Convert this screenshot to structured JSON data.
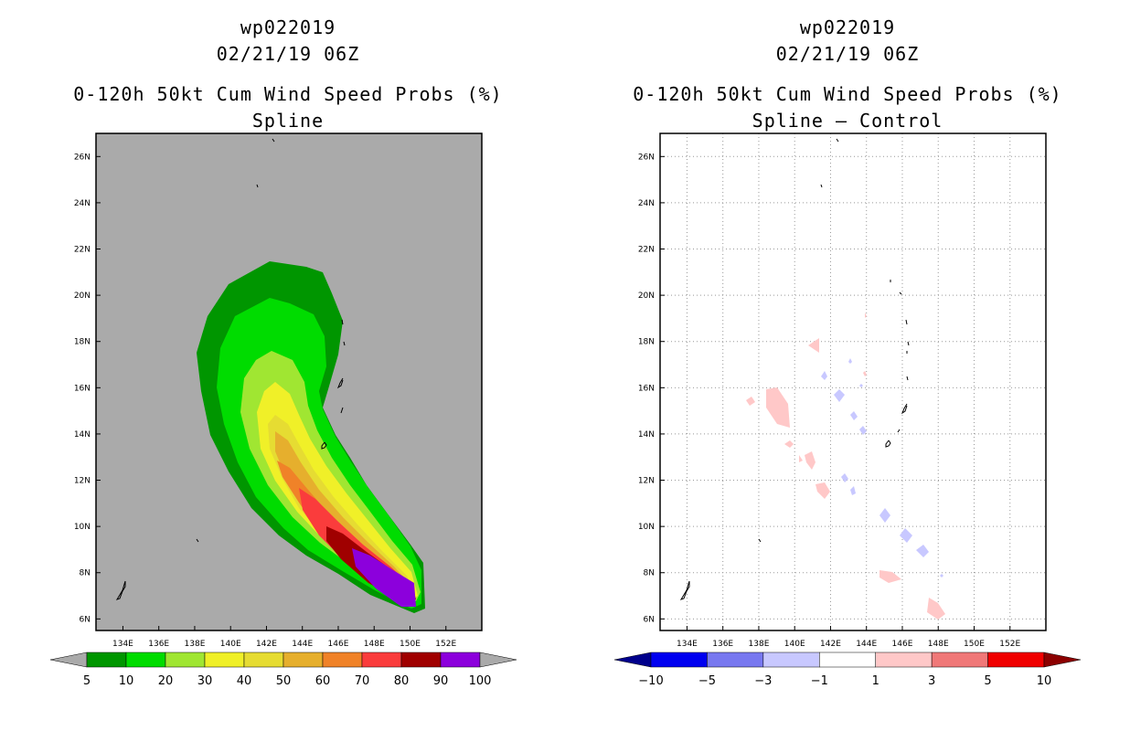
{
  "left": {
    "title_line1": "wp022019",
    "title_line2": "02/21/19 06Z",
    "title_line3": "0-120h 50kt Cum Wind Speed Probs (%)",
    "title_line4": "Spline"
  },
  "right": {
    "title_line1": "wp022019",
    "title_line2": "02/21/19 06Z",
    "title_line3": "0-120h 50kt Cum Wind Speed Probs (%)",
    "title_line4": "Spline – Control"
  },
  "colors": {
    "land_bg": "#aaaaaa",
    "prob": [
      "#009600",
      "#00dc00",
      "#a0e632",
      "#f0f028",
      "#e6dc32",
      "#e6af2d",
      "#f08228",
      "#fa3c3c",
      "#a00000",
      "#8c00dc"
    ],
    "diff_neg": [
      "#00008c",
      "#0000f0",
      "#7878f0",
      "#c8c8ff"
    ],
    "diff_pos": [
      "#ffc8c8",
      "#f07878",
      "#f00000",
      "#8c0000"
    ]
  },
  "chart_data": [
    {
      "type": "heatmap",
      "title": "0-120h 50kt Cum Wind Speed Probs (%) Spline",
      "xlim": [
        132.5,
        154
      ],
      "ylim": [
        5.5,
        27
      ],
      "xticks": [
        "134E",
        "136E",
        "138E",
        "140E",
        "142E",
        "144E",
        "146E",
        "148E",
        "150E",
        "152E"
      ],
      "yticks": [
        "6N",
        "8N",
        "10N",
        "12N",
        "14N",
        "16N",
        "18N",
        "20N",
        "22N",
        "24N",
        "26N"
      ],
      "colorbar_labels": [
        "5",
        "10",
        "20",
        "30",
        "40",
        "50",
        "60",
        "70",
        "80",
        "90",
        "100"
      ]
    },
    {
      "type": "heatmap",
      "title": "0-120h 50kt Cum Wind Speed Probs (%) Spline – Control",
      "xlim": [
        132.5,
        154
      ],
      "ylim": [
        5.5,
        27
      ],
      "xticks": [
        "134E",
        "136E",
        "138E",
        "140E",
        "142E",
        "144E",
        "146E",
        "148E",
        "150E",
        "152E"
      ],
      "yticks": [
        "6N",
        "8N",
        "10N",
        "12N",
        "14N",
        "16N",
        "18N",
        "20N",
        "22N",
        "24N",
        "26N"
      ],
      "colorbar_labels": [
        "−10",
        "−5",
        "−3",
        "−1",
        "1",
        "3",
        "5",
        "10"
      ]
    }
  ]
}
